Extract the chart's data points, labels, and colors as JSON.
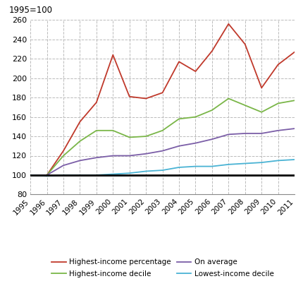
{
  "years": [
    1995,
    1996,
    1997,
    1998,
    1999,
    2000,
    2001,
    2002,
    2003,
    2004,
    2005,
    2006,
    2007,
    2008,
    2009,
    2010,
    2011
  ],
  "highest_income_percentage": [
    100,
    100,
    125,
    155,
    175,
    224,
    181,
    179,
    185,
    217,
    207,
    228,
    256,
    235,
    190,
    214,
    227
  ],
  "highest_income_decile": [
    100,
    100,
    120,
    135,
    146,
    146,
    139,
    140,
    146,
    158,
    160,
    167,
    179,
    172,
    165,
    174,
    177
  ],
  "on_average": [
    100,
    100,
    110,
    115,
    118,
    120,
    120,
    122,
    125,
    130,
    133,
    137,
    142,
    143,
    143,
    146,
    148
  ],
  "lowest_income_decile": [
    100,
    99,
    100,
    100,
    100,
    101,
    102,
    104,
    105,
    108,
    109,
    109,
    111,
    112,
    113,
    115,
    116
  ],
  "colors": {
    "highest_income_percentage": "#c0392b",
    "highest_income_decile": "#7ab648",
    "on_average": "#7b5ea7",
    "lowest_income_decile": "#4ab3d4"
  },
  "ylim": [
    80,
    260
  ],
  "yticks": [
    80,
    100,
    120,
    140,
    160,
    180,
    200,
    220,
    240,
    260
  ],
  "ylabel_text": "1995=100",
  "background_color": "#ffffff",
  "grid_color": "#bbbbbb",
  "legend_labels": [
    "Highest-income percentage",
    "Highest-income decile",
    "On average",
    "Lowest-income decile"
  ]
}
